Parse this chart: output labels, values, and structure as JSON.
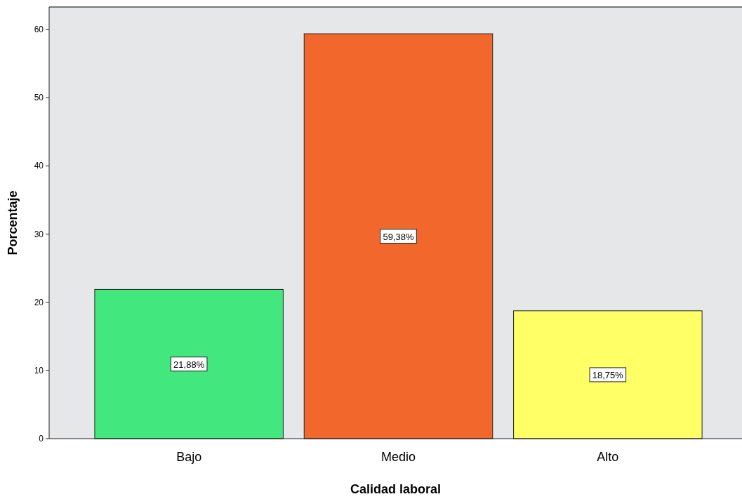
{
  "chart_data": {
    "type": "bar",
    "xlabel": "Calidad laboral",
    "ylabel": "Porcentaje",
    "categories": [
      "Bajo",
      "Medio",
      "Alto"
    ],
    "values": [
      21.88,
      59.38,
      18.75
    ],
    "colors": [
      "#42e87e",
      "#f2672b",
      "#ffff66"
    ],
    "value_labels": [
      "21,88%",
      "59,38%",
      "18,75%"
    ],
    "ylim": [
      0,
      63.3
    ],
    "yticks": [
      0,
      10,
      20,
      30,
      40,
      50,
      60
    ],
    "grid": false
  }
}
